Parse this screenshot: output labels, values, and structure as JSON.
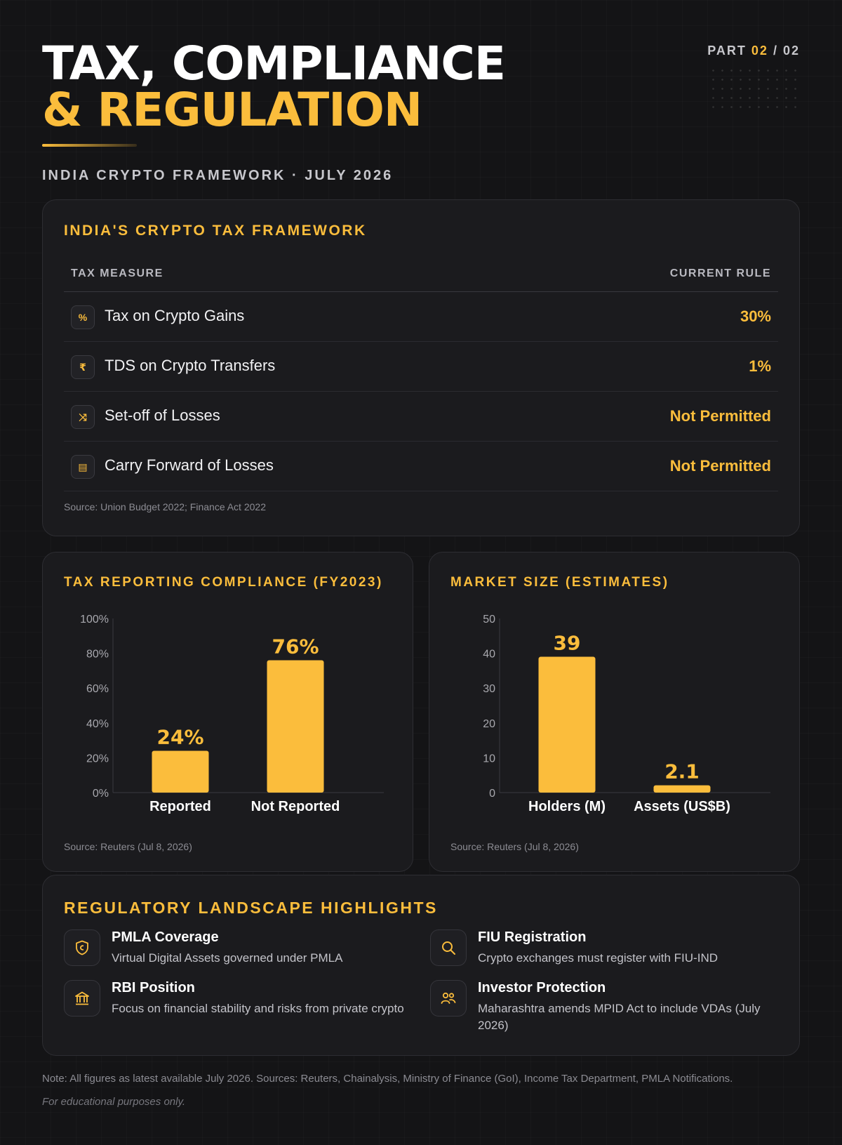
{
  "header": {
    "title_line1": "TAX, COMPLIANCE",
    "title_line2": "& REGULATION",
    "subtitle": "INDIA CRYPTO FRAMEWORK · JULY 2026",
    "part_prefix": "PART",
    "part_current": "02",
    "part_sep": " / ",
    "part_total": "02"
  },
  "tax_table": {
    "title": "INDIA'S CRYPTO TAX FRAMEWORK",
    "col_measure": "TAX MEASURE",
    "col_rule": "CURRENT RULE",
    "rows": [
      {
        "icon": "percent-icon",
        "glyph": "%",
        "label": "Tax on Crypto Gains",
        "value": "30%"
      },
      {
        "icon": "rupee-icon",
        "glyph": "₹",
        "label": "TDS on Crypto Transfers",
        "value": "1%"
      },
      {
        "icon": "swap-icon",
        "glyph": "⤨",
        "label": "Set-off of Losses",
        "value": "Not Permitted"
      },
      {
        "icon": "calendar-icon",
        "glyph": "▤",
        "label": "Carry Forward of Losses",
        "value": "Not Permitted"
      }
    ],
    "source": "Source: Union Budget 2022; Finance Act 2022"
  },
  "chart_data": [
    {
      "type": "bar",
      "title": "TAX REPORTING COMPLIANCE (FY2023)",
      "categories": [
        "Reported",
        "Not Reported"
      ],
      "values": [
        24,
        76
      ],
      "value_labels": [
        "24%",
        "76%"
      ],
      "y_ticks": [
        "0%",
        "20%",
        "40%",
        "60%",
        "80%",
        "100%"
      ],
      "ylim": [
        0,
        100
      ],
      "source": "Source: Reuters (Jul 8, 2026)",
      "bar_color": "#fbbd3c"
    },
    {
      "type": "bar",
      "title": "MARKET SIZE (ESTIMATES)",
      "categories": [
        "Holders (M)",
        "Assets (US$B)"
      ],
      "values": [
        39,
        2.1
      ],
      "value_labels": [
        "39",
        "2.1"
      ],
      "y_ticks": [
        "0",
        "10",
        "20",
        "30",
        "40",
        "50"
      ],
      "ylim": [
        0,
        50
      ],
      "source": "Source: Reuters (Jul 8, 2026)",
      "bar_color": "#fbbd3c"
    }
  ],
  "regulatory": {
    "title": "REGULATORY LANDSCAPE HIGHLIGHTS",
    "items": [
      {
        "icon": "shield-icon",
        "heading": "PMLA Coverage",
        "desc": "Virtual Digital Assets governed under PMLA"
      },
      {
        "icon": "search-icon",
        "heading": "FIU Registration",
        "desc": "Crypto exchanges must register with FIU-IND"
      },
      {
        "icon": "bank-icon",
        "heading": "RBI Position",
        "desc": "Focus on financial stability and risks from private crypto"
      },
      {
        "icon": "users-icon",
        "heading": "Investor Protection",
        "desc": "Maharashtra amends MPID Act to include VDAs (July 2026)"
      }
    ]
  },
  "footer": {
    "note": "Note: All figures as latest available July 2026. Sources: Reuters, Chainalysis, Ministry of Finance (GoI), Income Tax Department, PMLA Notifications.",
    "disclaimer": "For educational purposes only."
  },
  "colors": {
    "accent": "#fbbd3c",
    "background": "#141416",
    "card": "#1b1b1e"
  }
}
